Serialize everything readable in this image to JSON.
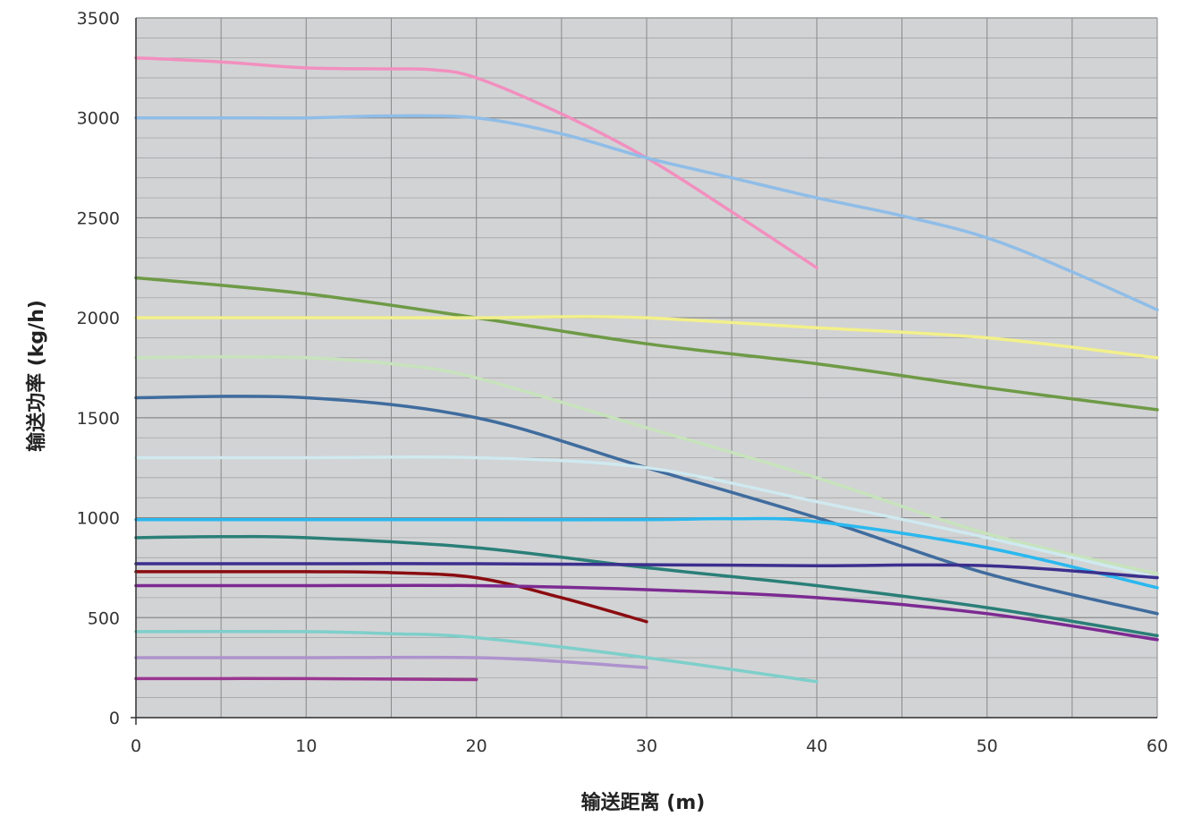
{
  "chart_data": {
    "type": "line",
    "title": "",
    "xlabel": "输送距离 (m)",
    "ylabel": "输送功率 (kg/h)",
    "xlim": [
      0,
      60
    ],
    "ylim": [
      0,
      3500
    ],
    "x_ticks": [
      "0",
      "10",
      "20",
      "30",
      "40",
      "50",
      "60"
    ],
    "y_ticks": [
      "0",
      "500",
      "1000",
      "1500",
      "2000",
      "2500",
      "3000",
      "3500"
    ],
    "grid": true,
    "legend": "none",
    "plot_background": "#d2d3d5",
    "series": [
      {
        "color": "#f28fbf",
        "points": [
          [
            0,
            3300
          ],
          [
            5,
            3280
          ],
          [
            10,
            3250
          ],
          [
            15,
            3245
          ],
          [
            17.5,
            3240
          ],
          [
            20,
            3200
          ],
          [
            25,
            3020
          ],
          [
            30,
            2800
          ],
          [
            35,
            2530
          ],
          [
            40,
            2250
          ]
        ]
      },
      {
        "color": "#8fbde8",
        "points": [
          [
            0,
            3000
          ],
          [
            5,
            3000
          ],
          [
            10,
            3000
          ],
          [
            15,
            3010
          ],
          [
            20,
            3000
          ],
          [
            25,
            2920
          ],
          [
            30,
            2800
          ],
          [
            35,
            2700
          ],
          [
            40,
            2600
          ],
          [
            45,
            2510
          ],
          [
            50,
            2400
          ],
          [
            55,
            2230
          ],
          [
            60,
            2040
          ]
        ]
      },
      {
        "color": "#6e9a46",
        "points": [
          [
            0,
            2200
          ],
          [
            10,
            2120
          ],
          [
            20,
            2000
          ],
          [
            30,
            1870
          ],
          [
            40,
            1770
          ],
          [
            50,
            1650
          ],
          [
            60,
            1540
          ]
        ]
      },
      {
        "color": "#f2f08a",
        "points": [
          [
            0,
            2000
          ],
          [
            10,
            2000
          ],
          [
            20,
            2000
          ],
          [
            25,
            2005
          ],
          [
            30,
            2000
          ],
          [
            40,
            1950
          ],
          [
            50,
            1900
          ],
          [
            60,
            1800
          ]
        ]
      },
      {
        "color": "#c7e3bc",
        "points": [
          [
            0,
            1800
          ],
          [
            5,
            1805
          ],
          [
            10,
            1800
          ],
          [
            15,
            1770
          ],
          [
            20,
            1700
          ],
          [
            30,
            1450
          ],
          [
            40,
            1200
          ],
          [
            50,
            920
          ],
          [
            60,
            720
          ]
        ]
      },
      {
        "color": "#3f6c9e",
        "points": [
          [
            0,
            1600
          ],
          [
            10,
            1600
          ],
          [
            20,
            1500
          ],
          [
            30,
            1250
          ],
          [
            40,
            1000
          ],
          [
            50,
            720
          ],
          [
            60,
            520
          ]
        ]
      },
      {
        "color": "#cfe9ef",
        "points": [
          [
            0,
            1300
          ],
          [
            10,
            1300
          ],
          [
            20,
            1300
          ],
          [
            30,
            1250
          ],
          [
            40,
            1080
          ],
          [
            50,
            900
          ],
          [
            60,
            700
          ]
        ]
      },
      {
        "color": "#2ab8ef",
        "points": [
          [
            0,
            990
          ],
          [
            10,
            990
          ],
          [
            20,
            990
          ],
          [
            30,
            990
          ],
          [
            35,
            995
          ],
          [
            40,
            980
          ],
          [
            50,
            850
          ],
          [
            60,
            650
          ]
        ]
      },
      {
        "color": "#2a7f78",
        "points": [
          [
            0,
            900
          ],
          [
            5,
            905
          ],
          [
            10,
            900
          ],
          [
            20,
            850
          ],
          [
            30,
            750
          ],
          [
            40,
            660
          ],
          [
            50,
            550
          ],
          [
            60,
            410
          ]
        ]
      },
      {
        "color": "#3b2f8e",
        "points": [
          [
            0,
            770
          ],
          [
            10,
            770
          ],
          [
            20,
            770
          ],
          [
            30,
            765
          ],
          [
            40,
            760
          ],
          [
            50,
            760
          ],
          [
            60,
            700
          ]
        ]
      },
      {
        "color": "#8a0c10",
        "points": [
          [
            0,
            730
          ],
          [
            10,
            730
          ],
          [
            15,
            725
          ],
          [
            20,
            700
          ],
          [
            25,
            600
          ],
          [
            30,
            480
          ]
        ]
      },
      {
        "color": "#7c2a92",
        "points": [
          [
            0,
            660
          ],
          [
            10,
            660
          ],
          [
            20,
            660
          ],
          [
            30,
            640
          ],
          [
            40,
            600
          ],
          [
            50,
            520
          ],
          [
            60,
            390
          ]
        ]
      },
      {
        "color": "#7ecfca",
        "points": [
          [
            0,
            430
          ],
          [
            10,
            430
          ],
          [
            15,
            420
          ],
          [
            20,
            400
          ],
          [
            30,
            300
          ],
          [
            40,
            180
          ]
        ]
      },
      {
        "color": "#ad93cd",
        "points": [
          [
            0,
            300
          ],
          [
            10,
            300
          ],
          [
            20,
            300
          ],
          [
            25,
            280
          ],
          [
            30,
            250
          ]
        ]
      },
      {
        "color": "#9a3790",
        "points": [
          [
            0,
            195
          ],
          [
            10,
            195
          ],
          [
            20,
            190
          ]
        ]
      }
    ]
  }
}
